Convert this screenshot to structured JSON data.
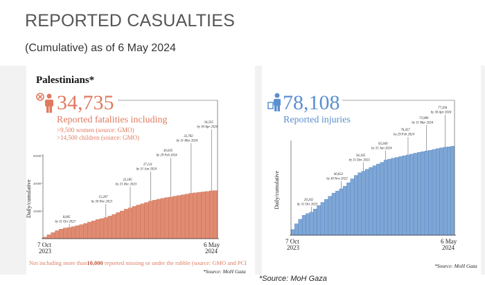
{
  "title": "REPORTED CASUALTIES",
  "subtitle": "(Cumulative) as of 6 May 2024",
  "colors": {
    "fatalities": "#e08c72",
    "injuries": "#7fa7d6",
    "accent_red": "#e07a5f",
    "accent_blue": "#5b8fd0"
  },
  "left": {
    "heading": "Palestinians*",
    "big_number": "34,735",
    "lead": "Reported fatalities including",
    "note1": ">9,500 women (source: GMO)",
    "note2": ">14,500 children (source: GMO)",
    "footnote_pre": "Not including more than",
    "footnote_bold": "10,000",
    "footnote_post": " reported missing or under the rubble (source: GMO and PCI",
    "source": "*Source: MoH Gaza"
  },
  "right": {
    "big_number": "78,108",
    "lead": "Reported injuries",
    "source": "*Source: MoH Gaza"
  },
  "bottom_source": "*Source: MoH Gaza",
  "chart_data": [
    {
      "type": "bar",
      "ylabel": "Daily/cumulative",
      "x_start_label": [
        "7 Oct",
        "2023"
      ],
      "x_end_label": [
        "6 May",
        "2024"
      ],
      "ylim": [
        0,
        60000
      ],
      "yticks": [
        "20000",
        "40000",
        "60000"
      ],
      "values": [
        1100,
        2800,
        4400,
        5800,
        6900,
        7700,
        8005,
        8700,
        9400,
        10100,
        11000,
        12000,
        12900,
        13800,
        14500,
        15207,
        16300,
        17500,
        18800,
        20000,
        21300,
        22185,
        23300,
        24300,
        25200,
        26100,
        27131,
        27800,
        28500,
        29100,
        29700,
        30035,
        30700,
        31200,
        31700,
        32200,
        32782,
        33100,
        33500,
        33800,
        34100,
        34535,
        34735
      ],
      "annotations": [
        {
          "index": 6,
          "value": "8,005",
          "date": "by 31 Oct 2023"
        },
        {
          "index": 15,
          "value": "15,207",
          "date": "by 30 Nov 2023"
        },
        {
          "index": 21,
          "value": "22,185",
          "date": "by 31 Dec 2023"
        },
        {
          "index": 26,
          "value": "27,131",
          "date": "by 31 Jan 2024"
        },
        {
          "index": 31,
          "value": "30,035",
          "date": "by 29 Feb 2024"
        },
        {
          "index": 36,
          "value": "32,782",
          "date": "by 31 Mar 2024"
        },
        {
          "index": 41,
          "value": "34,535",
          "date": "by 30 Apr 2024"
        }
      ]
    },
    {
      "type": "bar",
      "ylabel": "Daily/cumulative",
      "x_start_label": [
        "7 Oct",
        "2023"
      ],
      "x_end_label": [
        "6 May",
        "2024"
      ],
      "ylim": [
        0,
        82000
      ],
      "values": [
        5000,
        10000,
        14000,
        17500,
        19000,
        20242,
        23000,
        26000,
        28800,
        31500,
        34200,
        37000,
        38800,
        40652,
        43000,
        46000,
        49500,
        52500,
        54800,
        56165,
        57900,
        59500,
        61000,
        62500,
        64000,
        65949,
        66800,
        67600,
        68300,
        69000,
        69800,
        70457,
        71200,
        72000,
        72700,
        73400,
        73980,
        74600,
        75300,
        76000,
        76700,
        77204,
        77600,
        78108
      ],
      "annotations": [
        {
          "index": 5,
          "value": "20,242",
          "date": "by 31 Oct 2023"
        },
        {
          "index": 13,
          "value": "40,652",
          "date": "by 30 Nov 2023"
        },
        {
          "index": 19,
          "value": "56,165",
          "date": "by 31 Dec 2023"
        },
        {
          "index": 25,
          "value": "65,949",
          "date": "by 31 Jan 2024"
        },
        {
          "index": 31,
          "value": "70,457",
          "date": "by 29 Feb 2024"
        },
        {
          "index": 36,
          "value": "73,980",
          "date": "by 31 Mar 2024"
        },
        {
          "index": 41,
          "value": "77,204",
          "date": "by 30 Apr 2024"
        }
      ]
    }
  ]
}
